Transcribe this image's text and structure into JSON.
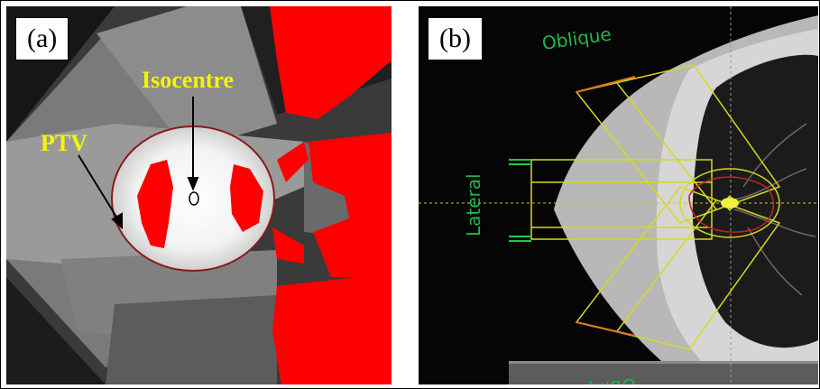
{
  "panel_a": {
    "label": "(a)",
    "annotations": {
      "isocentre": "Isocentre",
      "ptv": "PTV"
    },
    "colors": {
      "annotation_text": "#f5f500",
      "dose_red": "#ff0000",
      "ptv_contour": "#8b1a1a"
    }
  },
  "panel_b": {
    "label": "(b)",
    "beam_labels": {
      "oblique_top": "Oblique",
      "lateral": "Lateral",
      "oblique_bottom": "Oblique"
    },
    "colors": {
      "beam_label_text": "#1fb84a",
      "beam_outline": "#d8d820",
      "contour_red": "#cc2020"
    }
  }
}
